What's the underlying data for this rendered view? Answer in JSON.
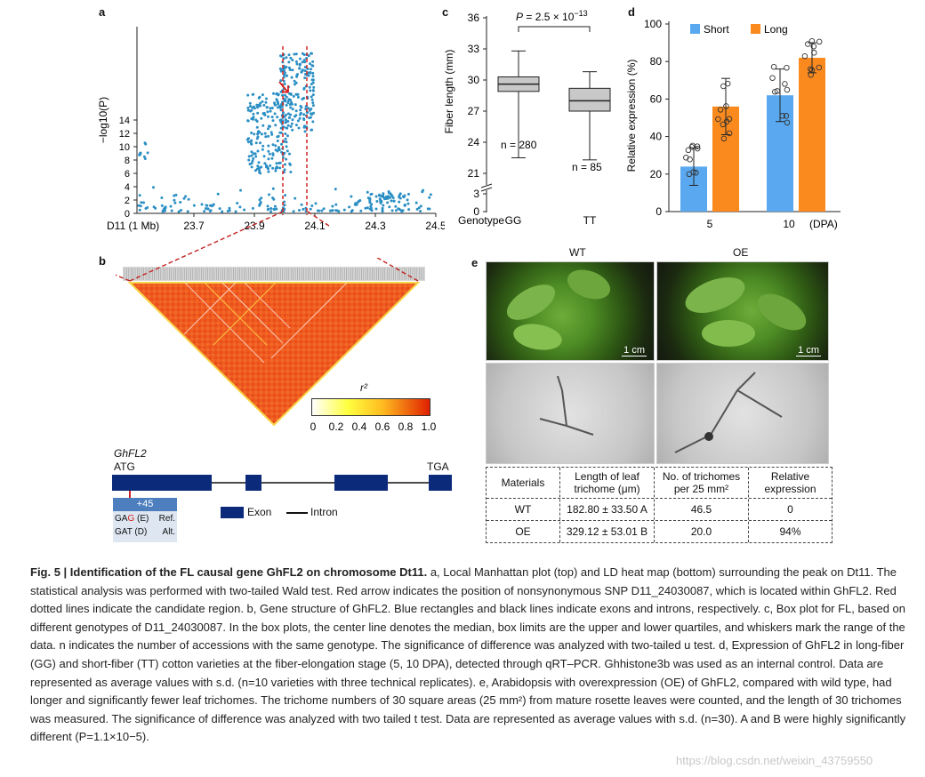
{
  "panel_labels": {
    "a": "a",
    "b": "b",
    "c": "c",
    "d": "d",
    "e": "e"
  },
  "panel_a": {
    "ylabel": "−log10(P)",
    "yticks": [
      "0",
      "2",
      "4",
      "6",
      "8",
      "10",
      "12",
      "14"
    ],
    "xprefix": "D11 (1 Mb)",
    "xticks": [
      "23.7",
      "23.9",
      "24.1",
      "24.3",
      "24.5"
    ]
  },
  "panel_b": {
    "legend_title": "r²",
    "legend_ticks": [
      "0",
      "0.2",
      "0.4",
      "0.6",
      "0.8",
      "1.0"
    ],
    "gene_name": "GhFL2",
    "start_codon": "ATG",
    "stop_codon": "TGA",
    "snp_pos": "+45",
    "ref_codon": "GAG (E)",
    "ref_label": "Ref.",
    "alt_codon": "GAT (D)",
    "alt_label": "Alt.",
    "legend_exon": "Exon",
    "legend_intron": "Intron"
  },
  "panel_c": {
    "ylabel": "Fiber length (mm)",
    "yticks": [
      "36",
      "33",
      "30",
      "27",
      "24",
      "21",
      "3",
      "0"
    ],
    "pvalue": "P = 2.5 × 10−13",
    "xprefix": "Genotype",
    "groups": [
      {
        "name": "GG",
        "n": "n = 280",
        "min": 22.5,
        "q1": 28.9,
        "median": 29.6,
        "q3": 30.3,
        "max": 32.8
      },
      {
        "name": "TT",
        "n": "n = 85",
        "min": 22.3,
        "q1": 27.0,
        "median": 28.0,
        "q3": 29.2,
        "max": 30.8
      }
    ]
  },
  "chart_data": {
    "type": "bar",
    "title": "",
    "ylabel": "Relative expression (%)",
    "xlabel": "(DPA)",
    "categories": [
      "5",
      "10"
    ],
    "ylim": [
      0,
      100
    ],
    "yticks": [
      "0",
      "20",
      "40",
      "60",
      "80",
      "100"
    ],
    "series": [
      {
        "name": "Short",
        "color": "#5aa9f0",
        "values": [
          24,
          62
        ],
        "sd": [
          10,
          14
        ]
      },
      {
        "name": "Long",
        "color": "#fb8a1e",
        "values": [
          56,
          82
        ],
        "sd": [
          15,
          8
        ]
      }
    ]
  },
  "panel_e": {
    "wt_label": "WT",
    "oe_label": "OE",
    "scale_bar": "1 cm",
    "table": {
      "headers": [
        "Materials",
        "Length of leaf trichome (μm)",
        "No. of trichomes per 25 mm²",
        "Relative expression"
      ],
      "rows": [
        [
          "WT",
          "182.80 ± 33.50 A",
          "46.5",
          "0"
        ],
        [
          "OE",
          "329.12 ± 53.01 B",
          "20.0",
          "94%"
        ]
      ]
    }
  },
  "caption": {
    "fig_title": "Fig. 5 | Identification of the FL causal gene GhFL2 on chromosome Dt11.",
    "body": "a, Local Manhattan plot (top) and LD heat map (bottom) surrounding the peak on Dt11. The statistical analysis was performed with two-tailed Wald test. Red arrow indicates the position of nonsynonymous SNP D11_24030087, which is located within GhFL2. Red dotted lines indicate the candidate region. b, Gene structure of GhFL2. Blue rectangles and black lines indicate exons and introns, respectively. c, Box plot for FL, based on different genotypes of D11_24030087. In the box plots, the center line denotes the median, box limits are the upper and lower quartiles, and whiskers mark the range of the data. n indicates the number of accessions with the same genotype. The significance of difference was analyzed with two-tailed u test. d, Expression of GhFL2 in long-fiber (GG) and short-fiber (TT) cotton varieties at the fiber-elongation stage (5, 10 DPA), detected through qRT–PCR. Ghhistone3b was used as an internal control. Data are represented as average values with s.d. (n=10 varieties with three technical replicates). e, Arabidopsis with overexpression (OE) of GhFL2, compared with wild type, had longer and significantly fewer leaf trichomes. The trichome numbers of 30 square areas (25 mm²) from  mature rosette leaves were counted, and the length of 30 trichomes was measured. The significance of difference was analyzed with two tailed t test. Data are represented as average values with s.d. (n=30). A and B were highly significantly different (P=1.1×10−5)."
  },
  "watermark": "https://blog.csdn.net/weixin_43759550"
}
